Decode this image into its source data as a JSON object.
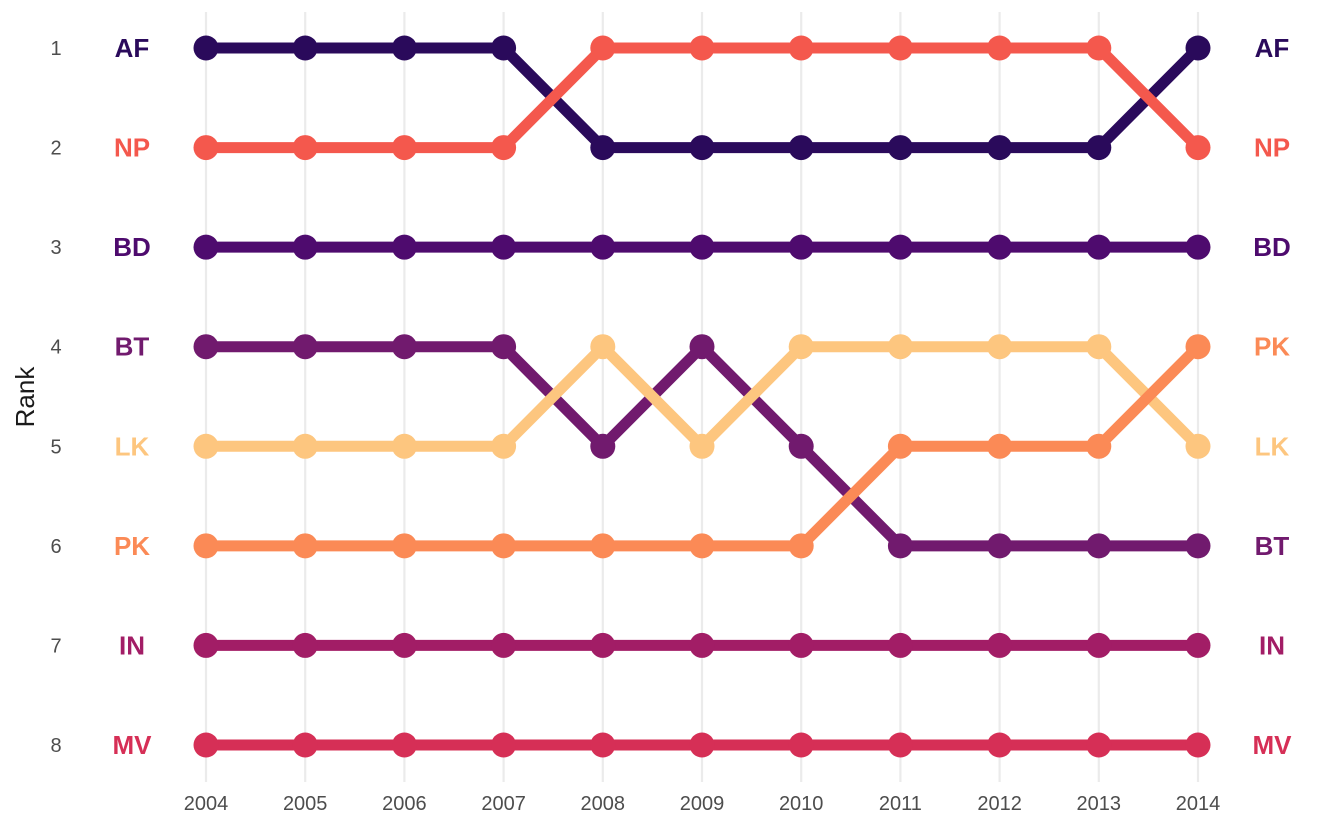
{
  "chart_data": {
    "type": "line",
    "ylabel": "Rank",
    "xlabel": "",
    "x": [
      2004,
      2005,
      2006,
      2007,
      2008,
      2009,
      2010,
      2011,
      2012,
      2013,
      2014
    ],
    "x_tick_labels": [
      "2004",
      "2005",
      "2006",
      "2007",
      "2008",
      "2009",
      "2010",
      "2011",
      "2012",
      "2013",
      "2014"
    ],
    "y_tick_labels": [
      "1",
      "2",
      "3",
      "4",
      "5",
      "6",
      "7",
      "8"
    ],
    "ylim": [
      1,
      8
    ],
    "y_reversed": true,
    "grid": "vertical-major",
    "legend": "none",
    "series": [
      {
        "name": "AF",
        "color": "#2a0a5b",
        "values": [
          1,
          1,
          1,
          1,
          2,
          2,
          2,
          2,
          2,
          2,
          1
        ]
      },
      {
        "name": "NP",
        "color": "#f4584d",
        "values": [
          2,
          2,
          2,
          2,
          1,
          1,
          1,
          1,
          1,
          1,
          2
        ]
      },
      {
        "name": "BD",
        "color": "#4e0b6e",
        "values": [
          3,
          3,
          3,
          3,
          3,
          3,
          3,
          3,
          3,
          3,
          3
        ]
      },
      {
        "name": "BT",
        "color": "#711a6e",
        "values": [
          4,
          4,
          4,
          4,
          5,
          4,
          5,
          6,
          6,
          6,
          6
        ]
      },
      {
        "name": "LK",
        "color": "#fdc67f",
        "values": [
          5,
          5,
          5,
          5,
          4,
          5,
          4,
          4,
          4,
          4,
          5
        ]
      },
      {
        "name": "PK",
        "color": "#fb8a56",
        "values": [
          6,
          6,
          6,
          6,
          6,
          6,
          6,
          5,
          5,
          5,
          4
        ]
      },
      {
        "name": "IN",
        "color": "#a21d66",
        "values": [
          7,
          7,
          7,
          7,
          7,
          7,
          7,
          7,
          7,
          7,
          7
        ]
      },
      {
        "name": "MV",
        "color": "#d62f56",
        "values": [
          8,
          8,
          8,
          8,
          8,
          8,
          8,
          8,
          8,
          8,
          8
        ]
      }
    ]
  }
}
